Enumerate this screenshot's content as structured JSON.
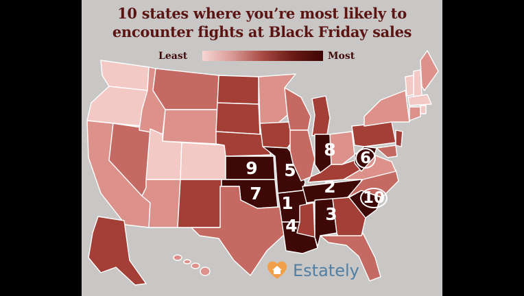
{
  "title_line1": "10 states where you’re most likely to",
  "title_line2": "encounter fights at Black Friday sales",
  "legend": {
    "low_label": "Least",
    "high_label": "Most"
  },
  "colors": {
    "c1": "#f3c9c6",
    "c2": "#dc918b",
    "c3": "#c56a62",
    "c4": "#a43f38",
    "c5": "#6e1b16",
    "c6": "#3e0806"
  },
  "ranks": {
    "arkansas": "1",
    "tennessee": "2",
    "alabama": "3",
    "louisiana": "4",
    "missouri": "5",
    "west_virginia": "6",
    "oklahoma": "7",
    "indiana": "8",
    "kansas": "9",
    "south_carolina": "10"
  },
  "brand": {
    "name": "Estately",
    "icon": "heart-house-icon",
    "color": "#f0a04a"
  }
}
